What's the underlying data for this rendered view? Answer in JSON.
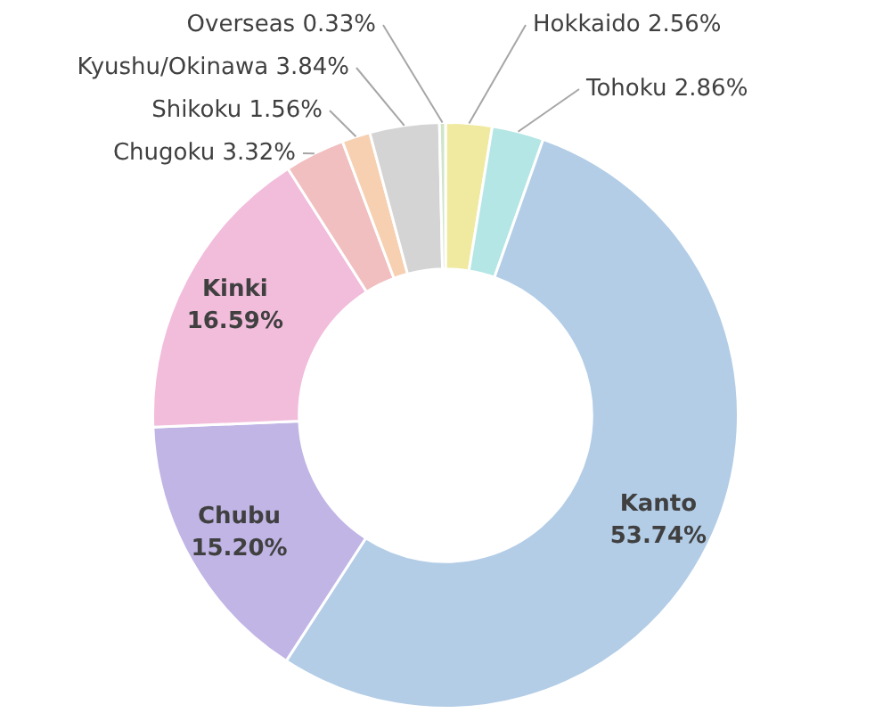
{
  "chart_data": {
    "type": "donut",
    "categories": [
      "Hokkaido",
      "Tohoku",
      "Kanto",
      "Chubu",
      "Kinki",
      "Chugoku",
      "Shikoku",
      "Kyushu/Okinawa",
      "Overseas"
    ],
    "values": [
      2.56,
      2.86,
      53.74,
      15.2,
      16.59,
      3.32,
      1.56,
      3.84,
      0.33
    ],
    "value_labels": [
      "2.56%",
      "2.86%",
      "53.74%",
      "15.20%",
      "16.59%",
      "3.32%",
      "1.56%",
      "3.84%",
      "0.33%"
    ],
    "colors": [
      "#f0eaa0",
      "#b3e6e4",
      "#b3cde7",
      "#c1b5e6",
      "#f2bcdb",
      "#f1bfbf",
      "#f6d0b0",
      "#d4d4d4",
      "#d0e4c8"
    ],
    "legend": false
  }
}
